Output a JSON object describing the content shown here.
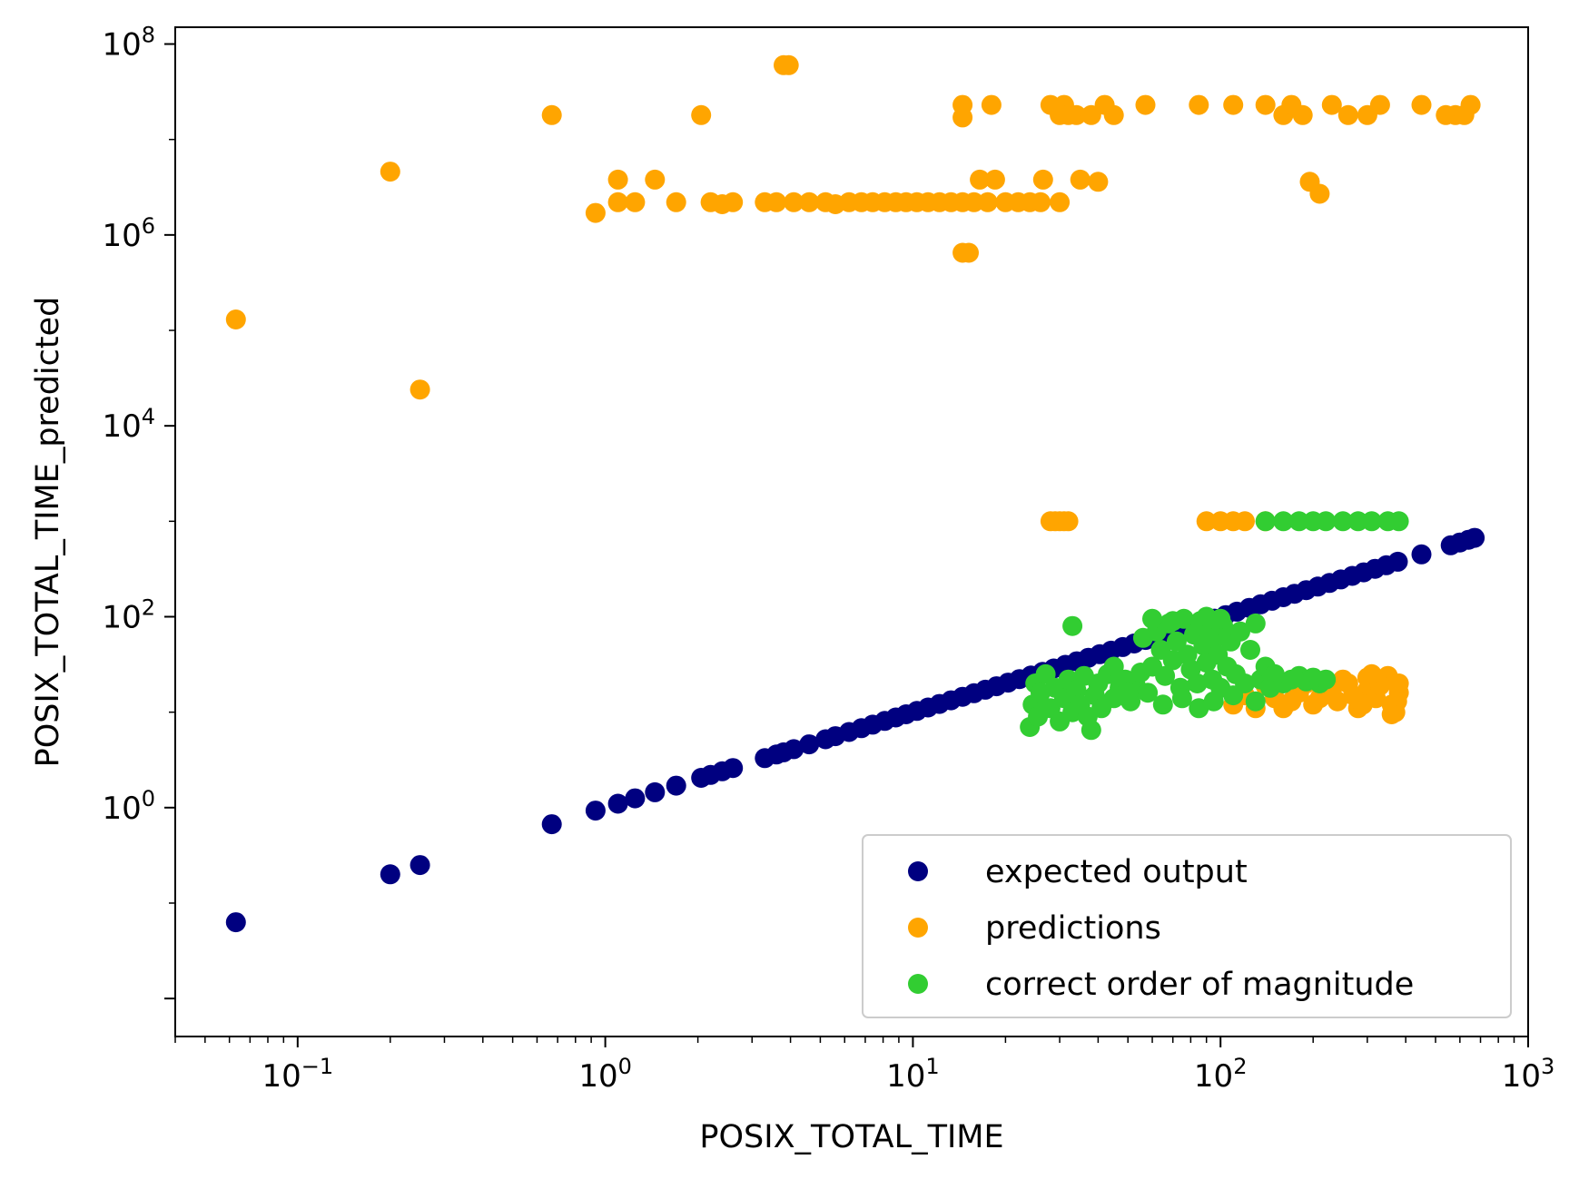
{
  "chart_data": {
    "type": "scatter",
    "title": "",
    "xlabel": "POSIX_TOTAL_TIME",
    "ylabel": "POSIX_TOTAL_TIME_predicted",
    "xscale": "log",
    "yscale": "log",
    "xlim": [
      0.04,
      1000
    ],
    "ylim": [
      0.004,
      150000000
    ],
    "grid": false,
    "legend_position": "lower-right",
    "x_ticks": [
      {
        "value": 0.1,
        "base": "10",
        "exp": "−1"
      },
      {
        "value": 1,
        "base": "10",
        "exp": "0"
      },
      {
        "value": 10,
        "base": "10",
        "exp": "1"
      },
      {
        "value": 100,
        "base": "10",
        "exp": "2"
      },
      {
        "value": 1000,
        "base": "10",
        "exp": "3"
      }
    ],
    "y_ticks": [
      {
        "value": 1,
        "base": "10",
        "exp": "0"
      },
      {
        "value": 100,
        "base": "10",
        "exp": "2"
      },
      {
        "value": 10000,
        "base": "10",
        "exp": "4"
      },
      {
        "value": 1000000,
        "base": "10",
        "exp": "6"
      },
      {
        "value": 100000000,
        "base": "10",
        "exp": "8"
      }
    ],
    "series": [
      {
        "name": "expected output",
        "color": "#000080",
        "points": [
          [
            0.063,
            0.063
          ],
          [
            0.2,
            0.2
          ],
          [
            0.25,
            0.25
          ],
          [
            0.67,
            0.67
          ],
          [
            0.93,
            0.93
          ],
          [
            1.1,
            1.1
          ],
          [
            1.25,
            1.25
          ],
          [
            1.45,
            1.45
          ],
          [
            1.7,
            1.7
          ],
          [
            2.05,
            2.05
          ],
          [
            2.2,
            2.2
          ],
          [
            2.4,
            2.4
          ],
          [
            2.6,
            2.6
          ],
          [
            3.3,
            3.3
          ],
          [
            3.6,
            3.6
          ],
          [
            3.8,
            3.8
          ],
          [
            4.1,
            4.1
          ],
          [
            4.6,
            4.6
          ],
          [
            5.2,
            5.2
          ],
          [
            5.6,
            5.6
          ],
          [
            6.2,
            6.2
          ],
          [
            6.8,
            6.8
          ],
          [
            7.4,
            7.4
          ],
          [
            8.1,
            8.1
          ],
          [
            8.8,
            8.8
          ],
          [
            9.5,
            9.5
          ],
          [
            10.3,
            10.3
          ],
          [
            11.2,
            11.2
          ],
          [
            12.2,
            12.2
          ],
          [
            13.3,
            13.3
          ],
          [
            14.5,
            14.5
          ],
          [
            15.8,
            15.8
          ],
          [
            17.2,
            17.2
          ],
          [
            18.7,
            18.7
          ],
          [
            20.4,
            20.4
          ],
          [
            22.2,
            22.2
          ],
          [
            24.2,
            24.2
          ],
          [
            26.4,
            26.4
          ],
          [
            28.7,
            28.7
          ],
          [
            31.3,
            31.3
          ],
          [
            34.1,
            34.1
          ],
          [
            37.2,
            37.2
          ],
          [
            40.5,
            40.5
          ],
          [
            44.1,
            44.1
          ],
          [
            48.1,
            48.1
          ],
          [
            52.4,
            52.4
          ],
          [
            57.1,
            57.1
          ],
          [
            62.2,
            62.2
          ],
          [
            67.8,
            67.8
          ],
          [
            73.9,
            73.9
          ],
          [
            80.5,
            80.5
          ],
          [
            87.7,
            87.7
          ],
          [
            95.6,
            95.6
          ],
          [
            104,
            104
          ],
          [
            113,
            113
          ],
          [
            124,
            124
          ],
          [
            135,
            135
          ],
          [
            147,
            147
          ],
          [
            160,
            160
          ],
          [
            174,
            174
          ],
          [
            190,
            190
          ],
          [
            207,
            207
          ],
          [
            226,
            226
          ],
          [
            246,
            246
          ],
          [
            268,
            268
          ],
          [
            292,
            292
          ],
          [
            318,
            318
          ],
          [
            346,
            346
          ],
          [
            377,
            377
          ],
          [
            450,
            450
          ],
          [
            560,
            560
          ],
          [
            600,
            600
          ],
          [
            640,
            640
          ],
          [
            670,
            670
          ]
        ]
      },
      {
        "name": "predictions",
        "color": "#ffa500",
        "points": [
          [
            0.063,
            130000
          ],
          [
            0.2,
            4600000
          ],
          [
            0.25,
            24000
          ],
          [
            0.67,
            18000000
          ],
          [
            0.93,
            1700000
          ],
          [
            1.1,
            2200000
          ],
          [
            1.1,
            3800000
          ],
          [
            1.25,
            2200000
          ],
          [
            1.45,
            3800000
          ],
          [
            1.7,
            2200000
          ],
          [
            2.05,
            18000000
          ],
          [
            2.2,
            2200000
          ],
          [
            2.4,
            2100000
          ],
          [
            2.6,
            2200000
          ],
          [
            3.3,
            2200000
          ],
          [
            3.6,
            2200000
          ],
          [
            3.8,
            60000000
          ],
          [
            3.95,
            60000000
          ],
          [
            4.1,
            2200000
          ],
          [
            4.6,
            2200000
          ],
          [
            5.2,
            2200000
          ],
          [
            5.6,
            2100000
          ],
          [
            6.2,
            2200000
          ],
          [
            6.8,
            2200000
          ],
          [
            7.4,
            2200000
          ],
          [
            8.1,
            2200000
          ],
          [
            8.8,
            2200000
          ],
          [
            9.5,
            2200000
          ],
          [
            10.3,
            2200000
          ],
          [
            11.2,
            2200000
          ],
          [
            12.2,
            2200000
          ],
          [
            13.3,
            2200000
          ],
          [
            14.5,
            650000
          ],
          [
            14.5,
            2200000
          ],
          [
            14.5,
            17000000
          ],
          [
            14.5,
            23000000
          ],
          [
            15.2,
            650000
          ],
          [
            15.8,
            2200000
          ],
          [
            16.5,
            3800000
          ],
          [
            17.5,
            2200000
          ],
          [
            18,
            23000000
          ],
          [
            18.5,
            3800000
          ],
          [
            20,
            2200000
          ],
          [
            22,
            2200000
          ],
          [
            24,
            2200000
          ],
          [
            26,
            2200000
          ],
          [
            26.5,
            3800000
          ],
          [
            28,
            23000000
          ],
          [
            30,
            2200000
          ],
          [
            30,
            18000000
          ],
          [
            31,
            23000000
          ],
          [
            32,
            18000000
          ],
          [
            34,
            18000000
          ],
          [
            35,
            3800000
          ],
          [
            38,
            18000000
          ],
          [
            40,
            3600000
          ],
          [
            42,
            23000000
          ],
          [
            45,
            18000000
          ],
          [
            57,
            23000000
          ],
          [
            85,
            23000000
          ],
          [
            110,
            23000000
          ],
          [
            140,
            23000000
          ],
          [
            160,
            18000000
          ],
          [
            170,
            23000000
          ],
          [
            185,
            18000000
          ],
          [
            195,
            3600000
          ],
          [
            210,
            2700000
          ],
          [
            230,
            23000000
          ],
          [
            260,
            18000000
          ],
          [
            300,
            18000000
          ],
          [
            330,
            23000000
          ],
          [
            450,
            23000000
          ],
          [
            540,
            18000000
          ],
          [
            580,
            18000000
          ],
          [
            620,
            18000000
          ],
          [
            650,
            23000000
          ],
          [
            28,
            1000
          ],
          [
            29,
            1000
          ],
          [
            30,
            1000
          ],
          [
            31,
            1000
          ],
          [
            32,
            1000
          ],
          [
            90,
            1000
          ],
          [
            100,
            1000
          ],
          [
            110,
            1000
          ],
          [
            120,
            1000
          ],
          [
            140,
            1000
          ],
          [
            110,
            12
          ],
          [
            130,
            11
          ],
          [
            150,
            14
          ],
          [
            180,
            16
          ],
          [
            200,
            12
          ],
          [
            220,
            18
          ],
          [
            240,
            13
          ],
          [
            260,
            20
          ],
          [
            280,
            11
          ],
          [
            300,
            17
          ],
          [
            320,
            14
          ],
          [
            340,
            21
          ],
          [
            360,
            12
          ],
          [
            380,
            16
          ],
          [
            370,
            10
          ],
          [
            350,
            24
          ],
          [
            330,
            19
          ],
          [
            300,
            23
          ],
          [
            270,
            15
          ],
          [
            250,
            22
          ],
          [
            230,
            17
          ],
          [
            190,
            20
          ],
          [
            170,
            13
          ],
          [
            140,
            19
          ],
          [
            120,
            15
          ],
          [
            160,
            11
          ],
          [
            210,
            14
          ],
          [
            290,
            12
          ],
          [
            310,
            25
          ],
          [
            380,
            20
          ],
          [
            375,
            13
          ],
          [
            360,
            9.5
          ]
        ]
      },
      {
        "name": "correct order of magnitude",
        "color": "#32cd32",
        "points": [
          [
            33,
            80
          ],
          [
            140,
            1000
          ],
          [
            160,
            1000
          ],
          [
            180,
            1000
          ],
          [
            200,
            1000
          ],
          [
            220,
            1000
          ],
          [
            250,
            1000
          ],
          [
            280,
            1000
          ],
          [
            310,
            1000
          ],
          [
            350,
            1000
          ],
          [
            380,
            1000
          ],
          [
            24,
            7
          ],
          [
            24.5,
            12
          ],
          [
            25,
            20
          ],
          [
            25.5,
            9
          ],
          [
            26,
            16
          ],
          [
            27,
            25
          ],
          [
            28,
            11
          ],
          [
            29,
            18
          ],
          [
            30,
            8
          ],
          [
            31,
            14
          ],
          [
            32,
            22
          ],
          [
            33,
            10
          ],
          [
            34,
            17
          ],
          [
            35,
            12
          ],
          [
            36,
            24
          ],
          [
            37,
            9
          ],
          [
            38,
            6.5
          ],
          [
            39,
            15
          ],
          [
            40,
            20
          ],
          [
            41,
            11
          ],
          [
            43,
            25
          ],
          [
            45,
            14
          ],
          [
            47,
            18
          ],
          [
            49,
            22
          ],
          [
            51,
            13
          ],
          [
            53,
            19
          ],
          [
            55,
            26
          ],
          [
            56,
            60
          ],
          [
            58,
            16
          ],
          [
            60,
            30
          ],
          [
            62,
            70
          ],
          [
            64,
            45
          ],
          [
            66,
            24
          ],
          [
            68,
            85
          ],
          [
            70,
            35
          ],
          [
            72,
            55
          ],
          [
            74,
            18
          ],
          [
            76,
            95
          ],
          [
            78,
            40
          ],
          [
            80,
            28
          ],
          [
            82,
            65
          ],
          [
            84,
            20
          ],
          [
            86,
            90
          ],
          [
            88,
            50
          ],
          [
            90,
            33
          ],
          [
            92,
            75
          ],
          [
            94,
            22
          ],
          [
            96,
            60
          ],
          [
            98,
            40
          ],
          [
            100,
            18
          ],
          [
            102,
            80
          ],
          [
            105,
            30
          ],
          [
            108,
            55
          ],
          [
            112,
            25
          ],
          [
            116,
            70
          ],
          [
            120,
            20
          ],
          [
            125,
            45
          ],
          [
            130,
            85
          ],
          [
            135,
            22
          ],
          [
            140,
            30
          ],
          [
            145,
            18
          ],
          [
            150,
            25
          ],
          [
            160,
            20
          ],
          [
            170,
            22
          ],
          [
            180,
            24
          ],
          [
            190,
            21
          ],
          [
            200,
            23
          ],
          [
            210,
            20
          ],
          [
            220,
            22
          ],
          [
            45,
            30
          ],
          [
            50,
            16
          ],
          [
            65,
            12
          ],
          [
            75,
            14
          ],
          [
            85,
            11
          ],
          [
            95,
            13
          ],
          [
            110,
            15
          ],
          [
            130,
            13
          ],
          [
            60,
            95
          ],
          [
            70,
            90
          ],
          [
            90,
            100
          ],
          [
            100,
            95
          ]
        ]
      }
    ]
  }
}
